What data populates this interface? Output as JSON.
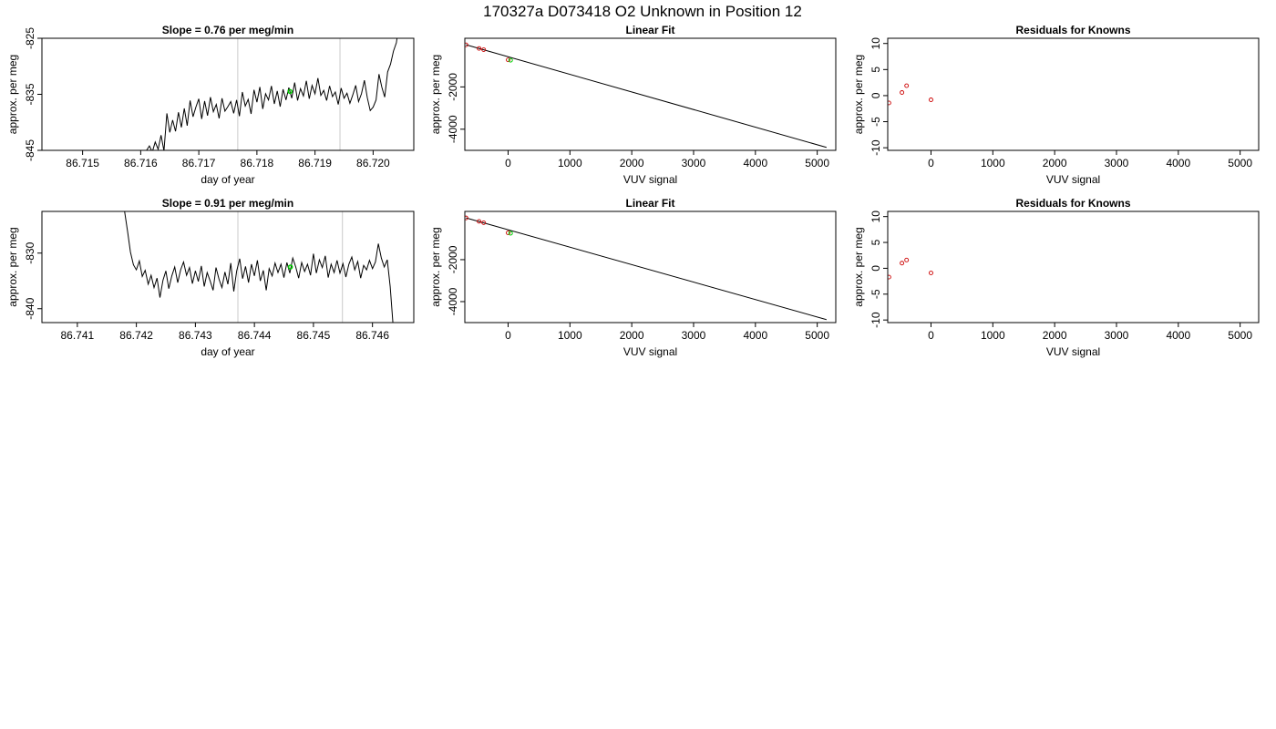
{
  "figure": {
    "title": "170327a      D073418   O2 Unknown in Position  12"
  },
  "colors": {
    "trace": "#000000",
    "window_lines": "#d3d3d3",
    "known_points": "#cc0000",
    "unknown_points": "#00cc00"
  },
  "chart_data": [
    {
      "type": "line",
      "title": "Slope =  0.76  per meg/min",
      "xlabel": "day of year",
      "ylabel": "approx. per meg",
      "xlim": [
        86.7143,
        86.7207
      ],
      "ylim": [
        -845,
        -825
      ],
      "xticks": [
        86.715,
        86.716,
        86.717,
        86.718,
        86.719,
        86.72
      ],
      "xtick_labels": [
        "86.715",
        "86.716",
        "86.717",
        "86.718",
        "86.719",
        "86.720"
      ],
      "yticks": [
        -825,
        -835,
        -845
      ],
      "ytick_labels": [
        "-825",
        "-835",
        "-845"
      ],
      "window_lines_x": [
        86.71767,
        86.71943
      ],
      "series": [
        {
          "role": "trace",
          "x": [
            86.7161,
            86.71615,
            86.7162,
            86.71625,
            86.7163,
            86.71635,
            86.7164,
            86.71645,
            86.7165,
            86.71655,
            86.7166,
            86.71665,
            86.7167,
            86.71675,
            86.7168,
            86.71685,
            86.7169,
            86.71695,
            86.717,
            86.71705,
            86.7171,
            86.71715,
            86.7172,
            86.71725,
            86.7173,
            86.71735,
            86.7174,
            86.71745,
            86.7175,
            86.71755,
            86.7176,
            86.71765,
            86.7177,
            86.71775,
            86.7178,
            86.71785,
            86.7179,
            86.71795,
            86.718,
            86.71805,
            86.7181,
            86.71815,
            86.7182,
            86.71825,
            86.7183,
            86.71835,
            86.7184,
            86.71845,
            86.7185,
            86.71855,
            86.7186,
            86.71865,
            86.7187,
            86.71875,
            86.7188,
            86.71885,
            86.7189,
            86.71895,
            86.719,
            86.71905,
            86.7191,
            86.71915,
            86.7192,
            86.71925,
            86.7193,
            86.71935,
            86.7194,
            86.71945,
            86.7195,
            86.71955,
            86.7196,
            86.71965,
            86.7197,
            86.71975,
            86.7198,
            86.71985,
            86.7199,
            86.71995,
            86.72,
            86.72005,
            86.7201,
            86.72015,
            86.7202,
            86.72025,
            86.7203,
            86.72035,
            86.7204,
            86.72045
          ],
          "y": [
            -845.0,
            -844.2,
            -845.3,
            -843.5,
            -844.8,
            -842.3,
            -845.1,
            -838.4,
            -841.8,
            -839.6,
            -841.6,
            -838.2,
            -840.9,
            -837.5,
            -840.6,
            -836.1,
            -839.0,
            -837.3,
            -835.8,
            -839.4,
            -836.2,
            -838.8,
            -835.5,
            -838.1,
            -836.8,
            -839.3,
            -835.7,
            -838.0,
            -837.2,
            -836.3,
            -838.4,
            -836.0,
            -838.9,
            -834.6,
            -837.1,
            -835.9,
            -838.5,
            -834.2,
            -836.4,
            -833.7,
            -837.6,
            -834.9,
            -836.0,
            -833.5,
            -836.7,
            -834.4,
            -837.2,
            -834.1,
            -836.0,
            -833.8,
            -835.7,
            -832.9,
            -836.1,
            -834.0,
            -835.3,
            -832.6,
            -835.8,
            -833.4,
            -834.9,
            -832.1,
            -835.2,
            -834.3,
            -836.1,
            -833.5,
            -835.4,
            -834.6,
            -836.8,
            -833.9,
            -835.7,
            -834.8,
            -836.6,
            -835.1,
            -833.4,
            -836.3,
            -834.9,
            -832.5,
            -835.6,
            -837.9,
            -837.3,
            -836.0,
            -831.4,
            -833.7,
            -835.5,
            -831.0,
            -829.6,
            -827.3,
            -825.8,
            -822.0
          ]
        },
        {
          "role": "unknown-marker",
          "x": [
            86.71857
          ],
          "y": [
            -834.5
          ]
        }
      ]
    },
    {
      "type": "scatter",
      "title": "Linear Fit",
      "xlabel": "VUV signal",
      "ylabel": "approx. per meg",
      "xlim": [
        -700,
        5300
      ],
      "ylim": [
        -5000,
        300
      ],
      "xticks": [
        0,
        1000,
        2000,
        3000,
        4000,
        5000
      ],
      "xtick_labels": [
        "0",
        "1000",
        "2000",
        "3000",
        "4000",
        "5000"
      ],
      "yticks": [
        -2000,
        -4000
      ],
      "ytick_labels": [
        "-2000",
        "-4000"
      ],
      "fit_line": {
        "x": [
          -680,
          5150
        ],
        "y": [
          -8,
          -4860
        ]
      },
      "series": [
        {
          "role": "knowns",
          "x": [
            -680,
            -470,
            -395,
            0
          ],
          "y": [
            -10,
            -180,
            -240,
            -720
          ]
        },
        {
          "role": "unknown",
          "x": [
            40
          ],
          "y": [
            -740
          ]
        }
      ]
    },
    {
      "type": "scatter",
      "title": "Residuals for Knowns",
      "xlabel": "VUV signal",
      "ylabel": "approx. per meg",
      "xlim": [
        -700,
        5300
      ],
      "ylim": [
        -10.5,
        11
      ],
      "xticks": [
        0,
        1000,
        2000,
        3000,
        4000,
        5000
      ],
      "xtick_labels": [
        "0",
        "1000",
        "2000",
        "3000",
        "4000",
        "5000"
      ],
      "yticks": [
        10,
        5,
        0,
        -5,
        -10
      ],
      "ytick_labels": [
        "10",
        "5",
        "0",
        "-5",
        "-10"
      ],
      "series": [
        {
          "role": "residuals",
          "x": [
            -680,
            -470,
            -395,
            0
          ],
          "y": [
            -1.4,
            0.6,
            1.9,
            -0.8
          ]
        }
      ]
    },
    {
      "type": "line",
      "title": "Slope =  0.91  per meg/min",
      "xlabel": "day of year",
      "ylabel": "approx. per meg",
      "xlim": [
        86.7404,
        86.7467
      ],
      "ylim": [
        -842.5,
        -822.5
      ],
      "xticks": [
        86.741,
        86.742,
        86.743,
        86.744,
        86.745,
        86.746
      ],
      "xtick_labels": [
        "86.741",
        "86.742",
        "86.743",
        "86.744",
        "86.745",
        "86.746"
      ],
      "yticks": [
        -830,
        -840
      ],
      "ytick_labels": [
        "-830",
        "-840"
      ],
      "window_lines_x": [
        86.74372,
        86.74549
      ],
      "series": [
        {
          "role": "trace",
          "x": [
            86.7418,
            86.74185,
            86.7419,
            86.74195,
            86.742,
            86.74205,
            86.7421,
            86.74215,
            86.7422,
            86.74225,
            86.7423,
            86.74235,
            86.7424,
            86.74245,
            86.7425,
            86.74255,
            86.7426,
            86.74265,
            86.7427,
            86.74275,
            86.7428,
            86.74285,
            86.7429,
            86.74295,
            86.743,
            86.74305,
            86.7431,
            86.74315,
            86.7432,
            86.74325,
            86.7433,
            86.74335,
            86.7434,
            86.74345,
            86.7435,
            86.74355,
            86.7436,
            86.74365,
            86.7437,
            86.74375,
            86.7438,
            86.74385,
            86.7439,
            86.74395,
            86.744,
            86.74405,
            86.7441,
            86.74415,
            86.7442,
            86.74425,
            86.7443,
            86.74435,
            86.7444,
            86.74445,
            86.7445,
            86.74455,
            86.7446,
            86.74465,
            86.7447,
            86.74475,
            86.7448,
            86.74485,
            86.7449,
            86.74495,
            86.745,
            86.74505,
            86.7451,
            86.74515,
            86.7452,
            86.74525,
            86.7453,
            86.74535,
            86.7454,
            86.74545,
            86.7455,
            86.74555,
            86.7456,
            86.74565,
            86.7457,
            86.74575,
            86.7458,
            86.74585,
            86.7459,
            86.74595,
            86.746,
            86.74605,
            86.7461,
            86.74615,
            86.7462,
            86.74625,
            86.7463,
            86.74635
          ],
          "y": [
            -822.5,
            -826.0,
            -829.8,
            -832.1,
            -833.0,
            -831.4,
            -834.2,
            -833.1,
            -835.6,
            -834.0,
            -836.2,
            -834.5,
            -838.0,
            -834.9,
            -833.2,
            -836.4,
            -834.1,
            -832.5,
            -835.3,
            -833.0,
            -831.6,
            -834.0,
            -832.6,
            -835.5,
            -833.2,
            -835.1,
            -832.3,
            -836.0,
            -833.5,
            -835.0,
            -836.7,
            -832.6,
            -834.7,
            -836.2,
            -833.4,
            -835.6,
            -831.8,
            -836.9,
            -833.2,
            -831.0,
            -834.6,
            -832.4,
            -835.3,
            -832.0,
            -834.1,
            -831.3,
            -835.0,
            -833.1,
            -836.7,
            -832.8,
            -834.1,
            -831.8,
            -833.5,
            -832.0,
            -834.4,
            -831.7,
            -833.6,
            -830.9,
            -832.5,
            -834.5,
            -831.7,
            -833.3,
            -832.0,
            -834.0,
            -830.1,
            -833.6,
            -831.2,
            -832.6,
            -830.5,
            -834.4,
            -832.0,
            -833.5,
            -831.3,
            -833.6,
            -831.9,
            -834.3,
            -832.0,
            -830.7,
            -833.0,
            -831.5,
            -834.5,
            -832.2,
            -833.0,
            -831.3,
            -832.8,
            -831.6,
            -828.3,
            -830.9,
            -832.5,
            -831.2,
            -836.0,
            -843.0
          ]
        },
        {
          "role": "unknown-marker",
          "x": [
            86.74461
          ],
          "y": [
            -832.5
          ]
        }
      ]
    },
    {
      "type": "scatter",
      "title": "Linear Fit",
      "xlabel": "VUV signal",
      "ylabel": "approx. per meg",
      "xlim": [
        -700,
        5300
      ],
      "ylim": [
        -5000,
        300
      ],
      "xticks": [
        0,
        1000,
        2000,
        3000,
        4000,
        5000
      ],
      "xtick_labels": [
        "0",
        "1000",
        "2000",
        "3000",
        "4000",
        "5000"
      ],
      "yticks": [
        -2000,
        -4000
      ],
      "ytick_labels": [
        "-2000",
        "-4000"
      ],
      "fit_line": {
        "x": [
          -680,
          5150
        ],
        "y": [
          -8,
          -4860
        ]
      },
      "series": [
        {
          "role": "knowns",
          "x": [
            -680,
            -470,
            -395,
            0
          ],
          "y": [
            -10,
            -175,
            -240,
            -720
          ]
        },
        {
          "role": "unknown",
          "x": [
            40
          ],
          "y": [
            -740
          ]
        }
      ]
    },
    {
      "type": "scatter",
      "title": "Residuals for Knowns",
      "xlabel": "VUV signal",
      "ylabel": "approx. per meg",
      "xlim": [
        -700,
        5300
      ],
      "ylim": [
        -10.5,
        11
      ],
      "xticks": [
        0,
        1000,
        2000,
        3000,
        4000,
        5000
      ],
      "xtick_labels": [
        "0",
        "1000",
        "2000",
        "3000",
        "4000",
        "5000"
      ],
      "yticks": [
        10,
        5,
        0,
        -5,
        -10
      ],
      "ytick_labels": [
        "10",
        "5",
        "0",
        "-5",
        "-10"
      ],
      "series": [
        {
          "role": "residuals",
          "x": [
            -680,
            -470,
            -395,
            0
          ],
          "y": [
            -1.7,
            1.0,
            1.6,
            -0.9
          ]
        }
      ]
    }
  ]
}
